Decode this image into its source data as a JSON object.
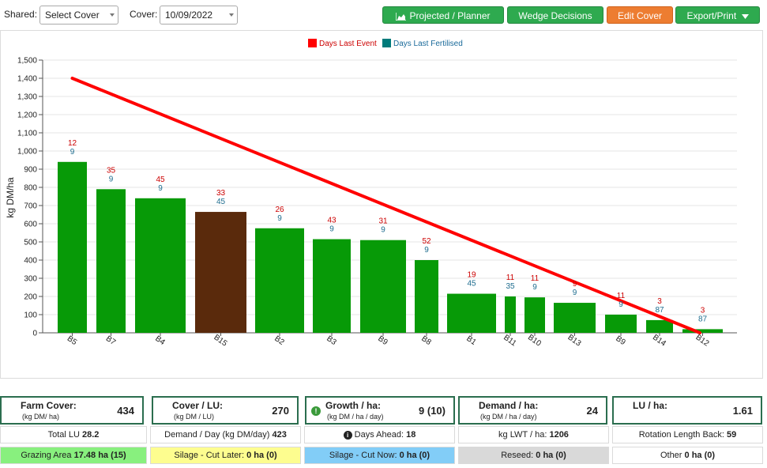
{
  "toolbar": {
    "shared_label": "Shared:",
    "shared_value": "Select Cover",
    "cover_label": "Cover:",
    "cover_value": "10/09/2022",
    "buttons": {
      "projected": "Projected / Planner",
      "wedge": "Wedge Decisions",
      "edit": "Edit Cover",
      "export": "Export/Print"
    },
    "colors": {
      "green": "#2eaa4f",
      "orange": "#ed7d31"
    },
    "icons": {
      "projected": "area-chart-icon",
      "export": "caret-down-icon"
    }
  },
  "chart_data": {
    "type": "bar",
    "title": "",
    "xlabel": "",
    "ylabel": "kg DM/ha",
    "ylim": [
      0,
      1500
    ],
    "y_ticks": [
      0,
      100,
      200,
      300,
      400,
      500,
      600,
      700,
      800,
      900,
      1000,
      1100,
      1200,
      1300,
      1400,
      1500
    ],
    "y_tick_labels": [
      "0",
      "100",
      "200",
      "300",
      "400",
      "500",
      "600",
      "700",
      "800",
      "900",
      "1,000",
      "1,100",
      "1,200",
      "1,300",
      "1,400",
      "1,500"
    ],
    "grid": true,
    "legend_placement": "top-center",
    "legend": [
      {
        "label": "Days Last Event",
        "color": "#ff0000"
      },
      {
        "label": "Days Last Fertilised",
        "color": "#007b7b"
      }
    ],
    "bar_color": "#079a07",
    "highlight_color": "#5a2a0c",
    "line_color": "#ff0000",
    "target_line": {
      "start": 1400,
      "end": 0
    },
    "categories": [
      "B5",
      "B7",
      "B4",
      "B15",
      "B2",
      "B3",
      "B9",
      "B8",
      "B1",
      "B11",
      "B10",
      "B13",
      "B9",
      "B14",
      "B12"
    ],
    "values": [
      940,
      790,
      740,
      665,
      575,
      515,
      510,
      400,
      215,
      200,
      195,
      165,
      100,
      70,
      20
    ],
    "highlighted": [
      false,
      false,
      false,
      true,
      false,
      false,
      false,
      false,
      false,
      false,
      false,
      false,
      false,
      false,
      false
    ],
    "days_last_event": [
      "12",
      "35",
      "45",
      "33",
      "26",
      "43",
      "31",
      "52",
      "19",
      "11",
      "11",
      "9",
      "11",
      "3",
      "3"
    ],
    "days_last_fertilised": [
      "9",
      "9",
      "9",
      "45",
      "9",
      "9",
      "9",
      "9",
      "45",
      "35",
      "9",
      "9",
      "9",
      "87",
      "87"
    ]
  },
  "stats": {
    "farm_cover": {
      "title": "Farm Cover:",
      "unit": "(kg DM/ ha)",
      "value": "434"
    },
    "cover_lu": {
      "title": "Cover / LU:",
      "unit": "(kg DM / LU)",
      "value": "270"
    },
    "growth": {
      "title": "Growth / ha:",
      "unit": "(kg DM / ha / day)",
      "value": "9 (10)",
      "icon": "info-icon"
    },
    "demand": {
      "title": "Demand / ha:",
      "unit": "(kg DM / ha / day)",
      "value": "24"
    },
    "lu": {
      "title": "LU / ha:",
      "value": "1.61"
    }
  },
  "row1": {
    "total_lu_label": "Total LU",
    "total_lu_value": "28.2",
    "demand_label": "Demand / Day (kg DM/day)",
    "demand_value": "423",
    "days_ahead_label": "Days Ahead:",
    "days_ahead_value": "18",
    "lwt_label": "kg LWT / ha:",
    "lwt_value": "1206",
    "rotation_label": "Rotation Length Back:",
    "rotation_value": "59"
  },
  "row2": {
    "grazing_label": "Grazing Area",
    "grazing_value": "17.48 ha (15)",
    "grazing_color": "#88f07e",
    "silage_later_label": "Silage - Cut Later:",
    "silage_later_value": "0 ha (0)",
    "silage_later_color": "#fdfd8f",
    "silage_now_label": "Silage - Cut Now:",
    "silage_now_value": "0 ha (0)",
    "silage_now_color": "#82cdf7",
    "reseed_label": "Reseed:",
    "reseed_value": "0 ha (0)",
    "reseed_color": "#d9d9d9",
    "other_label": "Other",
    "other_value": "0 ha (0)",
    "other_color": "#ffffff"
  }
}
